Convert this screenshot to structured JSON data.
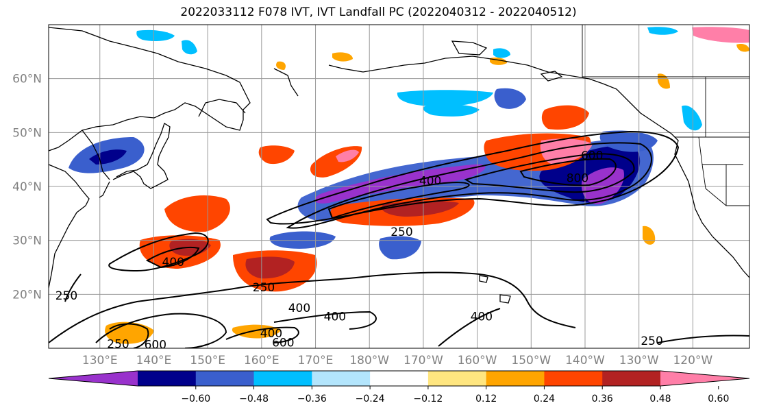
{
  "title": "2022033112 F078 IVT, IVT Landfall PC (2022040312 - 2022040512)",
  "map": {
    "lon_labels": [
      "130°E",
      "140°E",
      "150°E",
      "160°E",
      "170°E",
      "180°W",
      "170°W",
      "160°W",
      "150°W",
      "140°W",
      "130°W",
      "120°W"
    ],
    "lat_labels": [
      "20°N",
      "30°N",
      "40°N",
      "50°N",
      "60°N"
    ],
    "lat_values": [
      20,
      30,
      40,
      50,
      60
    ],
    "contour_labels": [
      {
        "text": "250",
        "lon": -174.0,
        "lat": 31.6
      },
      {
        "text": "400",
        "lon": -168.7,
        "lat": 41.1
      },
      {
        "text": "600",
        "lon": -138.7,
        "lat": 45.8
      },
      {
        "text": "800",
        "lon": -141.4,
        "lat": 41.6
      },
      {
        "text": "400",
        "lon": 143.6,
        "lat": 26.0
      },
      {
        "text": "250",
        "lon": 160.4,
        "lat": 21.3
      },
      {
        "text": "400",
        "lon": 167.0,
        "lat": 17.5
      },
      {
        "text": "400",
        "lon": 173.6,
        "lat": 15.9
      },
      {
        "text": "400",
        "lon": 161.8,
        "lat": 12.8
      },
      {
        "text": "600",
        "lon": 164.0,
        "lat": 11.1
      },
      {
        "text": "400",
        "lon": -159.2,
        "lat": 15.9
      },
      {
        "text": "250",
        "lon": -127.6,
        "lat": 11.4
      },
      {
        "text": "250",
        "lon": 123.8,
        "lat": 19.8
      },
      {
        "text": "250",
        "lon": 133.4,
        "lat": 10.8
      },
      {
        "text": "600",
        "lon": 140.3,
        "lat": 10.7
      }
    ]
  },
  "colorbar": {
    "tick_labels": [
      "−0.60",
      "−0.48",
      "−0.36",
      "−0.24",
      "−0.12",
      "0.12",
      "0.24",
      "0.36",
      "0.48",
      "0.60"
    ],
    "colors": [
      "#9932cc",
      "#00008b",
      "#3a5fcd",
      "#00bfff",
      "#b3e5fc",
      "#ffffff",
      "#ffe680",
      "#ffa500",
      "#ff4500",
      "#b22222",
      "#ff7fa8"
    ]
  }
}
